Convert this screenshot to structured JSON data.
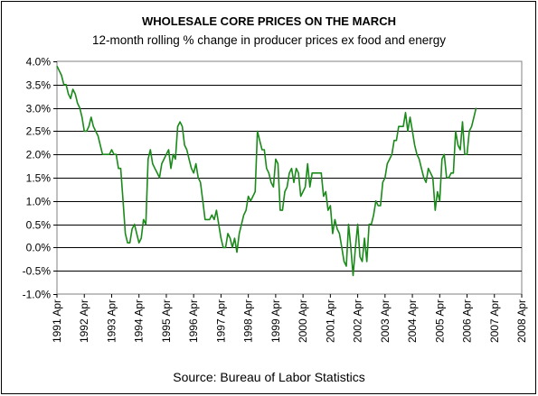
{
  "chart_data": {
    "type": "line",
    "title": "WHOLESALE CORE PRICES ON THE MARCH",
    "subtitle": "12-month rolling % change in producer prices ex food and energy",
    "source": "Source: Bureau of Labor Statistics",
    "xlabel": "",
    "ylabel": "",
    "ylim": [
      -1.0,
      4.0
    ],
    "y_ticks": [
      "4.0%",
      "3.5%",
      "3.0%",
      "2.5%",
      "2.0%",
      "1.5%",
      "1.0%",
      "0.5%",
      "0.0%",
      "-0.5%",
      "-1.0%"
    ],
    "x_ticks": [
      "1991 Apr",
      "1992 Apr",
      "1993 Apr",
      "1994 Apr",
      "1995 Apr",
      "1996 Apr",
      "1997 Apr",
      "1998 Apr",
      "1999 Apr",
      "2000 Apr",
      "2001 Apr",
      "2002 Apr",
      "2003 Apr",
      "2004 Apr",
      "2005 Apr",
      "2006 Apr",
      "2007 Apr",
      "2008 Apr"
    ],
    "grid": true,
    "line_color": "#1a8a1a",
    "series": [
      {
        "name": "",
        "start": "1991 Apr",
        "frequency": "monthly",
        "values": [
          3.9,
          3.8,
          3.7,
          3.5,
          3.5,
          3.3,
          3.2,
          3.4,
          3.3,
          3.1,
          3.0,
          2.8,
          2.5,
          2.5,
          2.6,
          2.8,
          2.6,
          2.5,
          2.4,
          2.2,
          2.0,
          2.0,
          2.0,
          2.0,
          2.1,
          2.0,
          2.0,
          1.7,
          1.7,
          1.0,
          0.3,
          0.1,
          0.1,
          0.4,
          0.5,
          0.3,
          0.1,
          0.2,
          0.6,
          0.5,
          1.9,
          2.1,
          1.8,
          1.7,
          1.6,
          1.5,
          1.8,
          1.9,
          2.0,
          2.1,
          1.7,
          2.0,
          1.9,
          2.6,
          2.7,
          2.6,
          2.2,
          2.1,
          1.9,
          1.7,
          1.6,
          1.8,
          1.5,
          1.4,
          1.0,
          0.6,
          0.6,
          0.6,
          0.7,
          0.6,
          0.8,
          0.5,
          0.2,
          0.0,
          0.0,
          0.3,
          0.2,
          0.0,
          0.2,
          -0.1,
          0.3,
          0.5,
          0.7,
          0.8,
          1.1,
          1.0,
          1.1,
          1.2,
          2.5,
          2.3,
          2.1,
          2.1,
          1.7,
          1.6,
          1.4,
          1.3,
          1.9,
          1.8,
          0.8,
          0.8,
          1.2,
          1.3,
          1.6,
          1.7,
          1.4,
          1.7,
          1.6,
          1.1,
          1.2,
          1.3,
          1.8,
          1.3,
          1.6,
          1.6,
          1.6,
          1.6,
          1.6,
          1.1,
          1.2,
          0.8,
          0.9,
          0.3,
          0.6,
          0.4,
          0.3,
          0.0,
          -0.3,
          -0.4,
          0.5,
          0.0,
          -0.6,
          0.0,
          0.5,
          -0.2,
          -0.3,
          0.2,
          -0.3,
          0.5,
          0.5,
          0.7,
          1.0,
          0.9,
          0.9,
          1.4,
          1.5,
          1.8,
          1.9,
          2.0,
          2.3,
          2.3,
          2.6,
          2.6,
          2.6,
          2.9,
          2.5,
          2.8,
          2.5,
          2.2,
          2.0,
          1.9,
          1.7,
          1.5,
          1.4,
          1.7,
          1.6,
          1.5,
          0.8,
          1.2,
          1.0,
          1.9,
          2.0,
          1.5,
          1.5,
          1.6,
          1.6,
          2.5,
          2.2,
          2.1,
          2.7,
          2.0,
          2.0,
          2.5,
          2.6,
          2.8,
          3.0
        ]
      }
    ]
  }
}
